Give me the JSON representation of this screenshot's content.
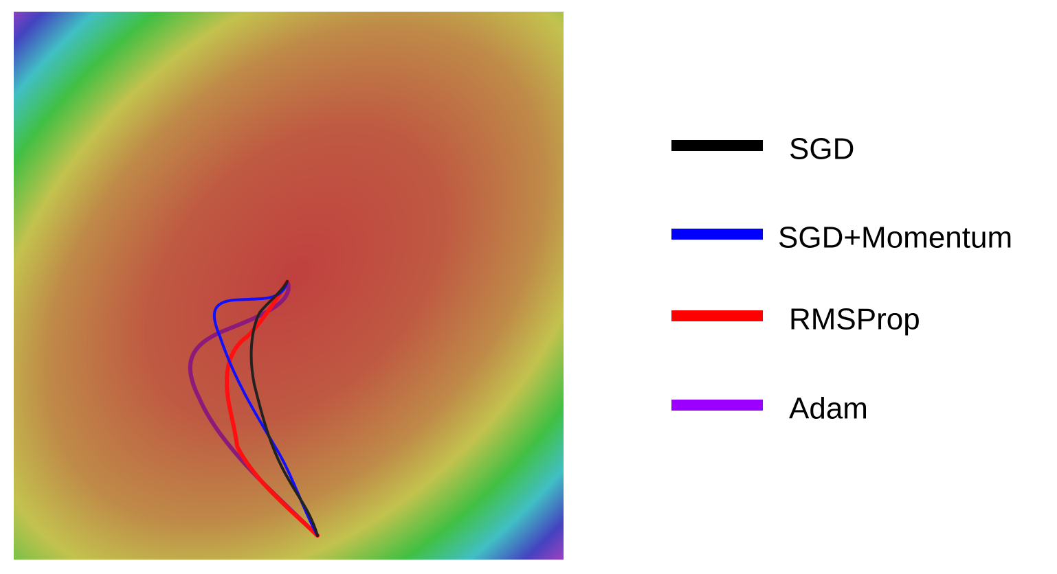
{
  "legend": {
    "items": [
      {
        "label": "SGD",
        "color": "#000000"
      },
      {
        "label": "SGD+Momentum",
        "color": "#0000ff"
      },
      {
        "label": "RMSProp",
        "color": "#ff0000"
      },
      {
        "label": "Adam",
        "color": "#9b00ff"
      }
    ]
  }
}
